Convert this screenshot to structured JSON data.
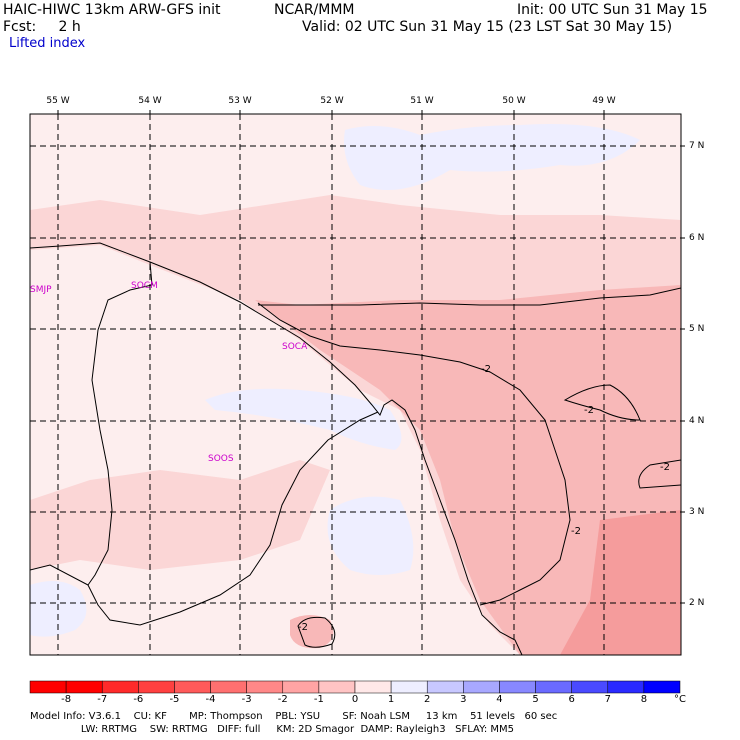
{
  "header": {
    "title": "HAIC-HIWC 13km ARW-GFS init",
    "org": "NCAR/MMM",
    "init": "Init: 00 UTC Sun 31 May 15",
    "fcst": "Fcst:     2 h",
    "valid": "Valid: 02 UTC Sun 31 May 15 (23 LST Sat 30 May 15)",
    "field": "Lifted index"
  },
  "longitude_labels": [
    "55 W",
    "54 W",
    "53 W",
    "52 W",
    "51 W",
    "50 W",
    "49 W"
  ],
  "latitude_labels": [
    "7 N",
    "6 N",
    "5 N",
    "4 N",
    "3 N",
    "2 N"
  ],
  "stations": [
    {
      "id": "SMJP"
    },
    {
      "id": "SOCM"
    },
    {
      "id": "SOCA"
    },
    {
      "id": "SOOS"
    }
  ],
  "contour_labels": [
    "-2",
    "-2",
    "-2",
    "-2",
    "-2"
  ],
  "colorbar": {
    "ticks": [
      "-8",
      "-7",
      "-6",
      "-5",
      "-4",
      "-3",
      "-2",
      "-1",
      "0",
      "1",
      "2",
      "3",
      "4",
      "5",
      "6",
      "7",
      "8"
    ],
    "unit": "°C",
    "colors": [
      "#ff0000",
      "#ff2a2a",
      "#ff4040",
      "#ff5a5a",
      "#ff7070",
      "#ff8888",
      "#ffa4a4",
      "#ffc4c4",
      "#ffe8e8",
      "#eeeeff",
      "#c8c8ff",
      "#a8a8ff",
      "#8888ff",
      "#6a6aff",
      "#4a4aff",
      "#2a2aff",
      "#0000ff"
    ]
  },
  "model_info": {
    "line1": "Model Info: V3.6.1    CU: KF       MP: Thompson    PBL: YSU       SF: Noah LSM     13 km    51 levels   60 sec",
    "line2": "                LW: RRTMG    SW: RRTMG   DIFF: full     KM: 2D Smagor  DAMP: Rayleigh3   SFLAY: MM5"
  },
  "colors": {
    "land_light": "#fdeeee",
    "pale_pink": "#fbd6d6",
    "mid_pink": "#f8b8b8",
    "deep_pink": "#f59c9c",
    "blue_tint": "#eeeeff",
    "station_text": "#cc00cc"
  }
}
